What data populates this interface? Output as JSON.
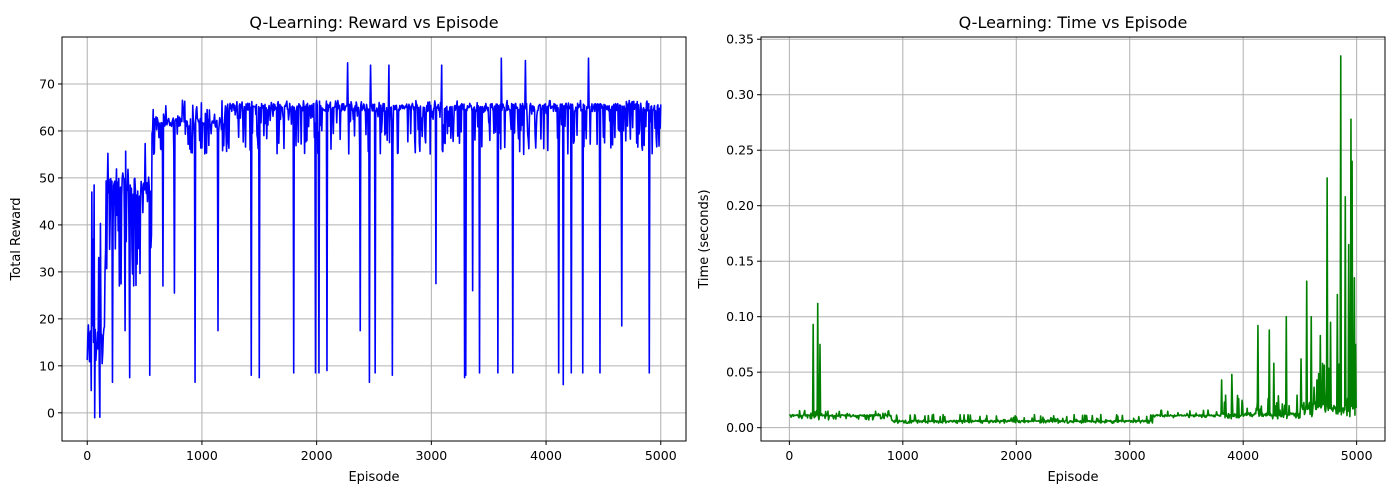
{
  "chart_data": [
    {
      "type": "line",
      "title": "Q-Learning: Reward vs Episode",
      "xlabel": "Episode",
      "ylabel": "Total Reward",
      "xlim": [
        -220,
        5220
      ],
      "ylim": [
        -6,
        80
      ],
      "xticks": [
        0,
        1000,
        2000,
        3000,
        4000,
        5000
      ],
      "yticks": [
        0,
        10,
        20,
        30,
        40,
        50,
        60,
        70
      ],
      "grid": true,
      "series": [
        {
          "color": "#0000ff",
          "episodes": [
            0,
            5000
          ],
          "phases": [
            {
              "from": 0,
              "to": 150,
              "base": 15,
              "noise_low": -4,
              "noise_high": 48
            },
            {
              "from": 150,
              "to": 560,
              "base": 48,
              "noise_low": 27,
              "noise_high": 58
            },
            {
              "from": 560,
              "to": 1200,
              "base": 62,
              "noise_low": 55,
              "noise_high": 67.5
            },
            {
              "from": 1200,
              "to": 5000,
              "base": 65,
              "noise_low": 55,
              "noise_high": 66.5
            }
          ],
          "dips": [
            {
              "x": 220,
              "y": 6.5
            },
            {
              "x": 280,
              "y": 27
            },
            {
              "x": 330,
              "y": 17.5
            },
            {
              "x": 370,
              "y": 7.5
            },
            {
              "x": 545,
              "y": 8
            },
            {
              "x": 660,
              "y": 27
            },
            {
              "x": 760,
              "y": 25.5
            },
            {
              "x": 940,
              "y": 6.5
            },
            {
              "x": 1140,
              "y": 17.5
            },
            {
              "x": 1430,
              "y": 8
            },
            {
              "x": 1500,
              "y": 7.5
            },
            {
              "x": 1800,
              "y": 8.5
            },
            {
              "x": 1990,
              "y": 8.5
            },
            {
              "x": 2020,
              "y": 8.5
            },
            {
              "x": 2090,
              "y": 9
            },
            {
              "x": 2270,
              "y": 8.5
            },
            {
              "x": 2380,
              "y": 17.5
            },
            {
              "x": 2460,
              "y": 6.5
            },
            {
              "x": 2510,
              "y": 8.5
            },
            {
              "x": 2660,
              "y": 8
            },
            {
              "x": 3040,
              "y": 27.5
            },
            {
              "x": 3290,
              "y": 7.5
            },
            {
              "x": 3300,
              "y": 8
            },
            {
              "x": 3360,
              "y": 26
            },
            {
              "x": 3420,
              "y": 8.5
            },
            {
              "x": 3580,
              "y": 8.5
            },
            {
              "x": 3710,
              "y": 8.5
            },
            {
              "x": 3820,
              "y": 8.5
            },
            {
              "x": 4110,
              "y": 8.5
            },
            {
              "x": 4150,
              "y": 6
            },
            {
              "x": 4220,
              "y": 8.5
            },
            {
              "x": 4320,
              "y": 8.5
            },
            {
              "x": 4470,
              "y": 8.5
            },
            {
              "x": 4660,
              "y": 18.5
            },
            {
              "x": 4900,
              "y": 8.5
            }
          ],
          "peaks": [
            {
              "x": 40,
              "y": 47
            },
            {
              "x": 60,
              "y": 48.5
            },
            {
              "x": 2270,
              "y": 74.5
            },
            {
              "x": 2470,
              "y": 74
            },
            {
              "x": 2630,
              "y": 74
            },
            {
              "x": 3090,
              "y": 74
            },
            {
              "x": 3610,
              "y": 75.5
            },
            {
              "x": 3820,
              "y": 75
            },
            {
              "x": 4370,
              "y": 75.5
            }
          ]
        }
      ]
    },
    {
      "type": "line",
      "title": "Q-Learning: Time vs Episode",
      "xlabel": "Episode",
      "ylabel": "Time (seconds)",
      "xlim": [
        -250,
        5250
      ],
      "ylim": [
        -0.012,
        0.352
      ],
      "xticks": [
        0,
        1000,
        2000,
        3000,
        4000,
        5000
      ],
      "yticks": [
        "0.00",
        "0.05",
        "0.10",
        "0.15",
        "0.20",
        "0.25",
        "0.30",
        "0.35"
      ],
      "grid": true,
      "series": [
        {
          "color": "#008000",
          "episodes": [
            0,
            5000
          ],
          "phases": [
            {
              "from": 0,
              "to": 900,
              "base": 0.011,
              "noise_low": 0.007,
              "noise_high": 0.016
            },
            {
              "from": 900,
              "to": 3200,
              "base": 0.006,
              "noise_low": 0.004,
              "noise_high": 0.012
            },
            {
              "from": 3200,
              "to": 3800,
              "base": 0.011,
              "noise_low": 0.009,
              "noise_high": 0.016
            },
            {
              "from": 3800,
              "to": 4500,
              "base": 0.012,
              "noise_low": 0.008,
              "noise_high": 0.03
            },
            {
              "from": 4500,
              "to": 5000,
              "base": 0.02,
              "noise_low": 0.01,
              "noise_high": 0.06
            }
          ],
          "peaks": [
            {
              "x": 210,
              "y": 0.093
            },
            {
              "x": 250,
              "y": 0.112
            },
            {
              "x": 270,
              "y": 0.075
            },
            {
              "x": 3810,
              "y": 0.043
            },
            {
              "x": 3900,
              "y": 0.048
            },
            {
              "x": 4130,
              "y": 0.092
            },
            {
              "x": 4230,
              "y": 0.088
            },
            {
              "x": 4270,
              "y": 0.058
            },
            {
              "x": 4380,
              "y": 0.1
            },
            {
              "x": 4510,
              "y": 0.062
            },
            {
              "x": 4560,
              "y": 0.132
            },
            {
              "x": 4600,
              "y": 0.1
            },
            {
              "x": 4680,
              "y": 0.083
            },
            {
              "x": 4740,
              "y": 0.225
            },
            {
              "x": 4770,
              "y": 0.095
            },
            {
              "x": 4830,
              "y": 0.12
            },
            {
              "x": 4860,
              "y": 0.335
            },
            {
              "x": 4900,
              "y": 0.208
            },
            {
              "x": 4930,
              "y": 0.165
            },
            {
              "x": 4950,
              "y": 0.278
            },
            {
              "x": 4960,
              "y": 0.24
            },
            {
              "x": 4980,
              "y": 0.135
            },
            {
              "x": 4990,
              "y": 0.075
            }
          ]
        }
      ]
    }
  ]
}
